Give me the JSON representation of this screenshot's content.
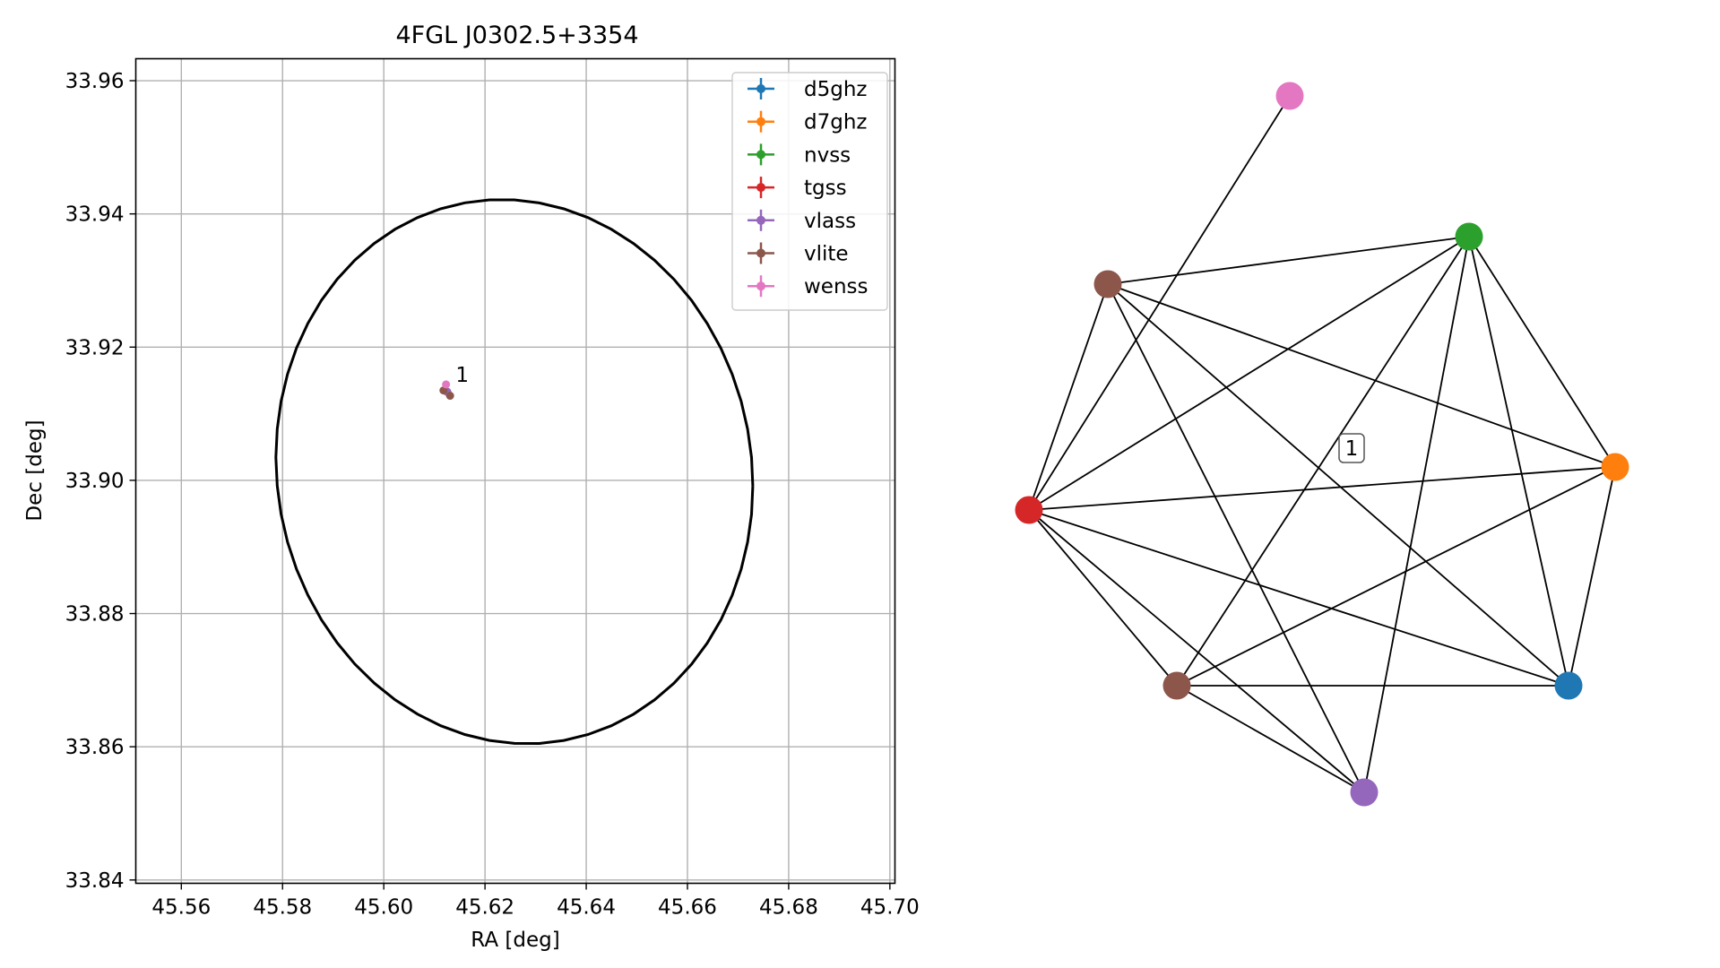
{
  "chart_data": [
    {
      "type": "scatter",
      "title": "4FGL J0302.5+3354",
      "xlabel": "RA [deg]",
      "ylabel": "Dec [deg]",
      "xlim": [
        45.551,
        45.701
      ],
      "ylim": [
        33.8395,
        33.9633
      ],
      "xticks": [
        45.56,
        45.58,
        45.6,
        45.62,
        45.64,
        45.66,
        45.68,
        45.7
      ],
      "yticks": [
        33.84,
        33.86,
        33.88,
        33.9,
        33.92,
        33.94,
        33.96
      ],
      "x_tick_labels": [
        "45.56",
        "45.58",
        "45.60",
        "45.62",
        "45.64",
        "45.66",
        "45.68",
        "45.70"
      ],
      "y_tick_labels": [
        "33.84",
        "33.86",
        "33.88",
        "33.90",
        "33.92",
        "33.94",
        "33.96"
      ],
      "grid": true,
      "legend_position": "top-right",
      "series": [
        {
          "name": "d5ghz",
          "color": "#1f77b4",
          "x": [
            45.6125
          ],
          "y": [
            33.9133
          ]
        },
        {
          "name": "d7ghz",
          "color": "#ff7f0e",
          "x": [
            45.6125
          ],
          "y": [
            33.9133
          ]
        },
        {
          "name": "nvss",
          "color": "#2ca02c",
          "x": [
            45.6125
          ],
          "y": [
            33.9133
          ]
        },
        {
          "name": "tgss",
          "color": "#d62728",
          "x": [
            45.6125
          ],
          "y": [
            33.9133
          ]
        },
        {
          "name": "vlass",
          "color": "#9467bd",
          "x": [
            45.6125
          ],
          "y": [
            33.9133
          ]
        },
        {
          "name": "vlite",
          "color": "#8c564b",
          "x": [
            45.6118,
            45.6131
          ],
          "y": [
            33.9135,
            33.9127
          ]
        },
        {
          "name": "wenss",
          "color": "#e377c2",
          "x": [
            45.6123
          ],
          "y": [
            33.9144
          ]
        }
      ],
      "annotations": [
        {
          "text": "1",
          "x": 45.6135,
          "y": 33.9145
        }
      ],
      "ellipse": {
        "center": [
          45.6258,
          33.9013
        ],
        "semi_axis_ra": 0.0472,
        "semi_axis_dec": 0.0408,
        "color": "#000000"
      }
    },
    {
      "type": "network",
      "label": "1",
      "nodes": [
        {
          "id": "wenss",
          "color": "#e377c2"
        },
        {
          "id": "nvss",
          "color": "#2ca02c"
        },
        {
          "id": "vlite_a",
          "color": "#8c564b"
        },
        {
          "id": "d7ghz",
          "color": "#ff7f0e"
        },
        {
          "id": "tgss",
          "color": "#d62728"
        },
        {
          "id": "vlite_b",
          "color": "#8c564b"
        },
        {
          "id": "d5ghz",
          "color": "#1f77b4"
        },
        {
          "id": "vlass",
          "color": "#9467bd"
        }
      ],
      "edges": [
        [
          "wenss",
          "tgss"
        ],
        [
          "vlite_a",
          "nvss"
        ],
        [
          "vlite_a",
          "d7ghz"
        ],
        [
          "vlite_a",
          "d5ghz"
        ],
        [
          "vlite_a",
          "vlass"
        ],
        [
          "vlite_a",
          "tgss"
        ],
        [
          "nvss",
          "tgss"
        ],
        [
          "nvss",
          "d7ghz"
        ],
        [
          "nvss",
          "d5ghz"
        ],
        [
          "nvss",
          "vlass"
        ],
        [
          "nvss",
          "vlite_b"
        ],
        [
          "tgss",
          "d7ghz"
        ],
        [
          "tgss",
          "d5ghz"
        ],
        [
          "tgss",
          "vlite_b"
        ],
        [
          "tgss",
          "vlass"
        ],
        [
          "d7ghz",
          "d5ghz"
        ],
        [
          "d7ghz",
          "vlite_b"
        ],
        [
          "vlite_b",
          "d5ghz"
        ],
        [
          "vlite_b",
          "vlass"
        ]
      ]
    }
  ]
}
